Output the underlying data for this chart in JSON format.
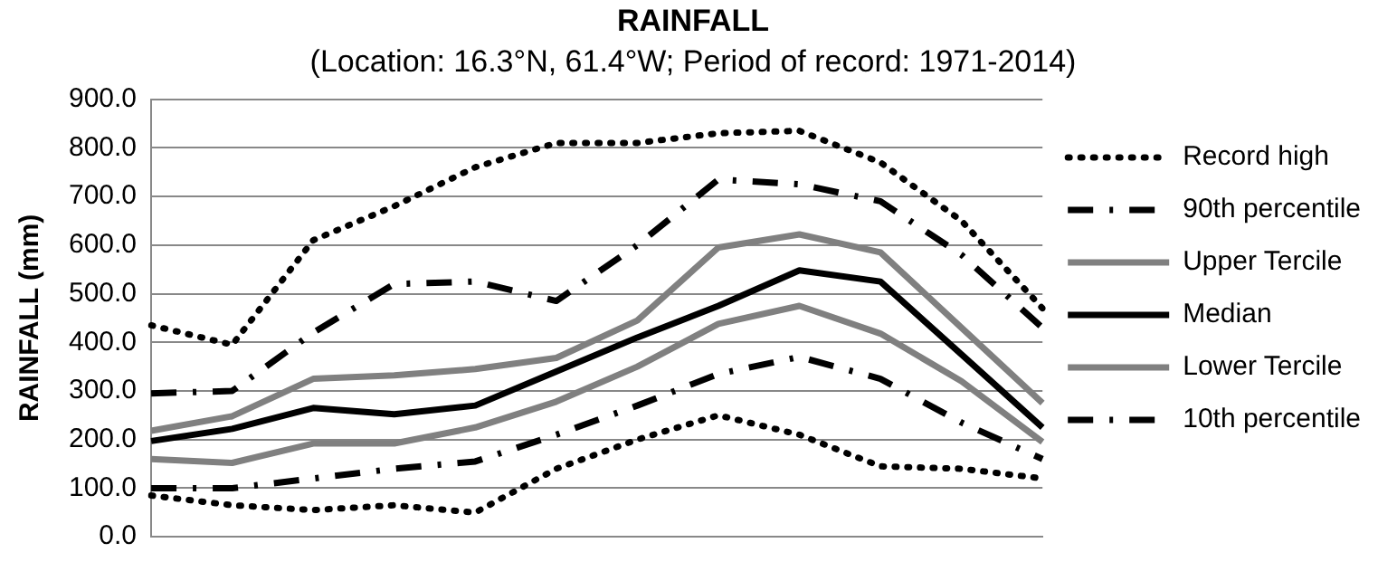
{
  "chart_data": {
    "type": "line",
    "title": "RAINFALL",
    "subtitle": "(Location: 16.3°N, 61.4°W; Period of record: 1971-2014)",
    "ylabel": "RAINFALL (mm)",
    "categories": [
      null,
      null,
      null,
      null,
      null,
      null,
      null,
      null,
      null,
      null,
      null,
      null
    ],
    "ylim": [
      0,
      900
    ],
    "yticks": [
      {
        "value": 0,
        "label": "0.0"
      },
      {
        "value": 100,
        "label": "100.0"
      },
      {
        "value": 200,
        "label": "200.0"
      },
      {
        "value": 300,
        "label": "300.0"
      },
      {
        "value": 400,
        "label": "400.0"
      },
      {
        "value": 500,
        "label": "500.0"
      },
      {
        "value": 600,
        "label": "600.0"
      },
      {
        "value": 700,
        "label": "700.0"
      },
      {
        "value": 800,
        "label": "800.0"
      },
      {
        "value": 900,
        "label": "900.0"
      }
    ],
    "grid": "y",
    "legend": "right",
    "marker": "none",
    "series": [
      {
        "name": "Record high",
        "color": "#000000",
        "line_style": "dotted",
        "values": [
          435,
          395,
          610,
          680,
          760,
          810,
          810,
          830,
          835,
          770,
          650,
          470
        ]
      },
      {
        "name": "90th percentile",
        "color": "#000000",
        "line_style": "dashed",
        "values": [
          295,
          300,
          420,
          520,
          525,
          485,
          600,
          735,
          725,
          690,
          580,
          430
        ]
      },
      {
        "name": "Upper Tercile",
        "color": "#808080",
        "line_style": "solid",
        "values": [
          218,
          248,
          325,
          332,
          345,
          368,
          445,
          595,
          622,
          585,
          430,
          275
        ]
      },
      {
        "name": "Median",
        "color": "#000000",
        "line_style": "solid",
        "values": [
          197,
          222,
          265,
          252,
          270,
          340,
          410,
          475,
          548,
          525,
          375,
          225
        ]
      },
      {
        "name": "Lower Tercile",
        "color": "#808080",
        "line_style": "solid",
        "values": [
          160,
          152,
          192,
          192,
          225,
          278,
          350,
          438,
          475,
          418,
          320,
          195
        ]
      },
      {
        "name": "10th percentile",
        "color": "#000000",
        "line_style": "dashed",
        "values": [
          100,
          100,
          120,
          140,
          155,
          210,
          270,
          335,
          370,
          325,
          235,
          160
        ]
      },
      {
        "color": "#000000",
        "line_style": "dotted",
        "values": [
          85,
          65,
          55,
          65,
          50,
          140,
          200,
          250,
          210,
          145,
          140,
          120
        ]
      }
    ]
  }
}
